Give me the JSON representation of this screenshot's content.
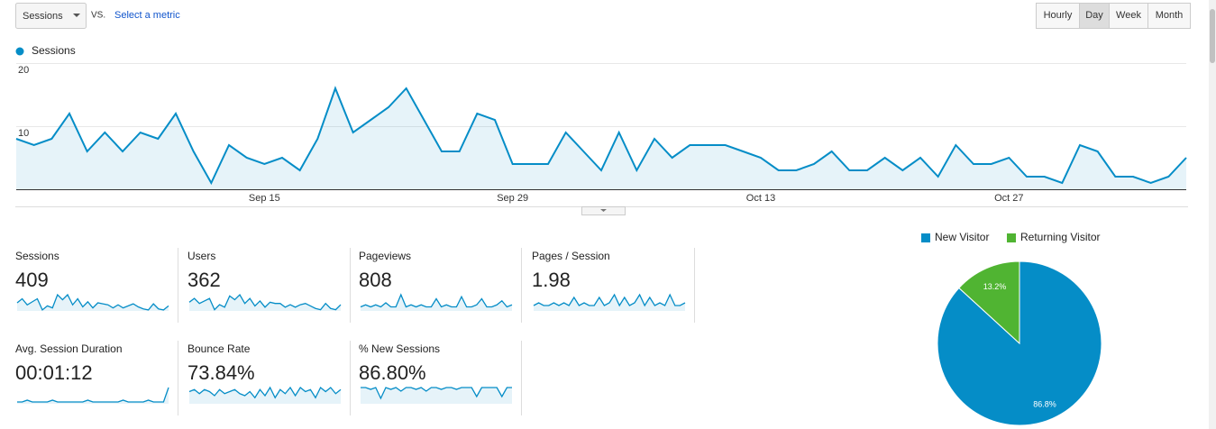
{
  "toolbar": {
    "metric": "Sessions",
    "vs": "VS.",
    "select": "Select a metric",
    "intervals": [
      "Hourly",
      "Day",
      "Week",
      "Month"
    ],
    "active_index": 1
  },
  "chart_data": [
    {
      "type": "line",
      "categories": [
        null,
        null,
        null,
        null,
        null,
        null,
        null,
        null,
        null,
        null,
        null,
        null,
        null,
        null,
        "Sep 15",
        null,
        null,
        null,
        null,
        null,
        null,
        null,
        null,
        null,
        null,
        null,
        null,
        null,
        "Sep 29",
        null,
        null,
        null,
        null,
        null,
        null,
        null,
        null,
        null,
        null,
        null,
        null,
        null,
        "Oct 13",
        null,
        null,
        null,
        null,
        null,
        null,
        null,
        null,
        null,
        null,
        null,
        null,
        null,
        "Oct 27",
        null,
        null,
        null,
        null,
        null,
        null,
        null,
        null,
        null,
        null
      ],
      "series": [
        {
          "name": "Sessions",
          "color": "#058dc7",
          "values": [
            8,
            7,
            8,
            12,
            6,
            9,
            6,
            9,
            8,
            12,
            6,
            1,
            7,
            5,
            4,
            5,
            3,
            8,
            16,
            9,
            11,
            13,
            16,
            11,
            6,
            6,
            12,
            11,
            4,
            4,
            4,
            9,
            6,
            3,
            9,
            3,
            8,
            5,
            7,
            7,
            7,
            6,
            5,
            3,
            3,
            4,
            6,
            3,
            3,
            5,
            3,
            5,
            2,
            7,
            4,
            4,
            5,
            2,
            2,
            1,
            7,
            6,
            2,
            2,
            1,
            2,
            5
          ]
        }
      ],
      "ylim": [
        0,
        20
      ],
      "yticks": [
        10,
        20
      ],
      "grid": true
    },
    {
      "type": "pie",
      "categories": [
        "New Visitor",
        "Returning Visitor"
      ],
      "values": [
        86.8,
        13.2
      ],
      "value_labels": [
        "86.8%",
        "13.2%"
      ],
      "colors": [
        "#058dc7",
        "#50b432"
      ]
    }
  ],
  "scorecards": [
    {
      "label": "Sessions",
      "value": "409",
      "spark": [
        8,
        12,
        6,
        9,
        12,
        1,
        5,
        3,
        16,
        11,
        16,
        6,
        12,
        4,
        9,
        3,
        8,
        7,
        6,
        3,
        6,
        3,
        5,
        7,
        4,
        2,
        1,
        7,
        2,
        1,
        5
      ]
    },
    {
      "label": "Users",
      "value": "362",
      "spark": [
        7,
        10,
        6,
        8,
        10,
        1,
        5,
        3,
        12,
        9,
        13,
        6,
        10,
        4,
        8,
        3,
        7,
        6,
        6,
        3,
        5,
        3,
        5,
        6,
        4,
        2,
        1,
        6,
        2,
        1,
        5
      ]
    },
    {
      "label": "Pageviews",
      "value": "808",
      "spark": [
        2,
        3,
        2,
        3,
        2,
        4,
        2,
        2,
        8,
        2,
        3,
        2,
        3,
        2,
        2,
        6,
        2,
        3,
        2,
        2,
        7,
        2,
        2,
        3,
        6,
        2,
        2,
        3,
        5,
        2,
        3
      ]
    },
    {
      "label": "Pages / Session",
      "value": "1.98",
      "spark": [
        2,
        3,
        2,
        2,
        3,
        2,
        3,
        2,
        5,
        2,
        3,
        2,
        2,
        5,
        2,
        3,
        6,
        2,
        5,
        2,
        3,
        6,
        2,
        5,
        2,
        3,
        2,
        6,
        2,
        2,
        3
      ]
    },
    {
      "label": "Avg. Session Duration",
      "value": "00:01:12",
      "spark": [
        1,
        1,
        2,
        1,
        1,
        1,
        1,
        2,
        1,
        1,
        1,
        1,
        1,
        1,
        2,
        1,
        1,
        1,
        1,
        1,
        1,
        2,
        1,
        1,
        1,
        1,
        2,
        1,
        1,
        1,
        9
      ]
    },
    {
      "label": "Bounce Rate",
      "value": "73.84%",
      "spark": [
        6,
        7,
        5,
        7,
        6,
        4,
        7,
        5,
        6,
        7,
        5,
        4,
        6,
        3,
        7,
        4,
        8,
        3,
        7,
        5,
        8,
        4,
        8,
        6,
        7,
        3,
        8,
        6,
        8,
        5,
        7
      ]
    },
    {
      "label": "% New Sessions",
      "value": "86.80%",
      "spark": [
        9,
        9,
        8,
        9,
        3,
        9,
        8,
        9,
        7,
        9,
        9,
        8,
        9,
        7,
        9,
        9,
        8,
        9,
        9,
        8,
        9,
        9,
        9,
        4,
        9,
        9,
        9,
        9,
        4,
        9,
        9
      ]
    }
  ]
}
